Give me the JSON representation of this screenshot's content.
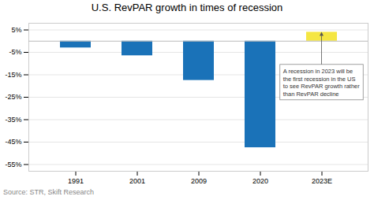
{
  "chart_data": {
    "type": "bar",
    "title": "U.S. RevPAR growth in times of recession",
    "categories": [
      "1991",
      "2001",
      "2009",
      "2020",
      "2023E"
    ],
    "values": [
      -3.0,
      -6.5,
      -17.5,
      -47.5,
      4.0
    ],
    "colors": [
      "#1a72b8",
      "#1a72b8",
      "#1a72b8",
      "#1a72b8",
      "#f5e642"
    ],
    "ylim": [
      -58,
      8
    ],
    "yticks": [
      {
        "value": 5,
        "label": "5%"
      },
      {
        "value": -5,
        "label": "-5%"
      },
      {
        "value": -15,
        "label": "-15%"
      },
      {
        "value": -25,
        "label": "-25%"
      },
      {
        "value": -35,
        "label": "-35%"
      },
      {
        "value": -45,
        "label": "-45%"
      },
      {
        "value": -55,
        "label": "-55%"
      }
    ],
    "grid": true,
    "annotation": "A recession in 2023 will be\nthe first recession in the US\nto see RevPAR growth rather\nthan RevPAR decline",
    "source": "Source: STR, Skift Research"
  }
}
